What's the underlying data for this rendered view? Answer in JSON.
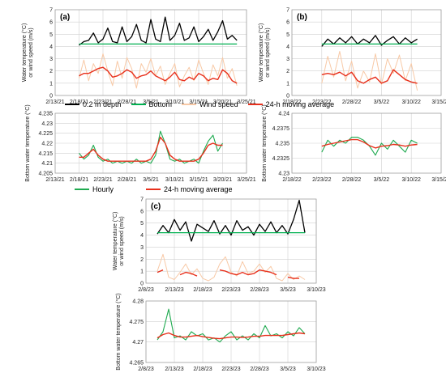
{
  "figure": {
    "legends": {
      "top": [
        "0.2 m depth",
        "Bottom",
        "Wind speed",
        "24-h moving average"
      ],
      "bottom": [
        "Hourly",
        "24-h moving average"
      ]
    }
  },
  "colors": {
    "surface": "#000000",
    "bottom": "#00b050",
    "wind": "#f8c9a6",
    "moving_average": "#e8301c",
    "hourly": "#1faa50",
    "grid": "#d0d0d0"
  },
  "chart_data": [
    {
      "id": "a-top",
      "panel_label": "(a)",
      "type": "line",
      "ylabel_lines": [
        "Water temperature (°C)",
        "or wind speed (m/s)"
      ],
      "x_ticks": [
        "2/13/21",
        "2/18/21",
        "2/23/21",
        "2/28/21",
        "3/5/21",
        "3/10/21",
        "3/15/21",
        "3/20/21",
        "3/25/21"
      ],
      "y_ticks": [
        "0",
        "1",
        "2",
        "3",
        "4",
        "5",
        "6",
        "7"
      ],
      "xlim": [
        0,
        40
      ],
      "ylim": [
        0,
        7
      ],
      "grid": true,
      "series": [
        {
          "name": "0.2 m depth",
          "role": "surface",
          "x": [
            5,
            6,
            7,
            8,
            9,
            10,
            11,
            12,
            13,
            14,
            15,
            16,
            17,
            18,
            19,
            20,
            21,
            22,
            23,
            24,
            25,
            26,
            27,
            28,
            29,
            30,
            31,
            32,
            33,
            34,
            35,
            36,
            37,
            38
          ],
          "y": [
            4.1,
            4.4,
            4.5,
            5.1,
            4.3,
            4.6,
            5.5,
            4.4,
            4.3,
            5.6,
            4.4,
            4.8,
            5.8,
            4.5,
            4.3,
            6.2,
            4.6,
            4.4,
            6.4,
            4.5,
            4.9,
            5.9,
            4.5,
            4.7,
            5.6,
            4.4,
            4.8,
            5.4,
            4.5,
            5.2,
            6.1,
            4.6,
            4.9,
            4.5
          ]
        },
        {
          "name": "Bottom",
          "role": "bottom",
          "x": [
            5,
            38
          ],
          "y": [
            4.2,
            4.2
          ]
        },
        {
          "name": "Wind speed",
          "role": "wind",
          "x": [
            5,
            6,
            7,
            8,
            9,
            10,
            11,
            12,
            13,
            14,
            15,
            16,
            17,
            18,
            19,
            20,
            21,
            22,
            23,
            24,
            25,
            26,
            27,
            28,
            29,
            30,
            31,
            32,
            33,
            34,
            35,
            36,
            37,
            38
          ],
          "y": [
            1.4,
            2.9,
            1.2,
            2.6,
            1.8,
            3.4,
            2.0,
            0.8,
            2.8,
            1.4,
            3.1,
            2.2,
            0.6,
            2.6,
            1.9,
            3.0,
            1.6,
            2.4,
            0.9,
            1.8,
            2.6,
            0.7,
            1.6,
            2.3,
            1.2,
            2.9,
            1.8,
            0.9,
            2.5,
            1.6,
            3.1,
            1.4,
            2.2,
            0.8
          ]
        },
        {
          "name": "24-h moving average",
          "role": "moving_average",
          "x": [
            5,
            6,
            7,
            8,
            9,
            10,
            11,
            12,
            13,
            14,
            15,
            16,
            17,
            18,
            19,
            20,
            21,
            22,
            23,
            24,
            25,
            26,
            27,
            28,
            29,
            30,
            31,
            32,
            33,
            34,
            35,
            36,
            37,
            38
          ],
          "y": [
            1.6,
            1.8,
            1.8,
            2.0,
            2.2,
            2.3,
            2.0,
            1.5,
            1.6,
            1.8,
            2.1,
            1.9,
            1.4,
            1.6,
            1.7,
            2.0,
            1.6,
            1.4,
            1.2,
            1.5,
            1.9,
            1.3,
            1.2,
            1.5,
            1.3,
            1.8,
            1.6,
            1.2,
            1.4,
            1.3,
            2.1,
            1.8,
            1.2,
            1.0
          ]
        }
      ]
    },
    {
      "id": "a-bottom",
      "type": "line",
      "ylabel_lines": [
        "Bottom water temperature (°C)"
      ],
      "x_ticks": [
        "2/13/21",
        "2/18/21",
        "2/23/21",
        "2/28/21",
        "3/5/21",
        "3/10/21",
        "3/15/21",
        "3/20/21",
        "3/25/21"
      ],
      "y_ticks": [
        "4.205",
        "4.21",
        "4.215",
        "4.22",
        "4.225",
        "4.23",
        "4.235"
      ],
      "xlim": [
        0,
        40
      ],
      "ylim": [
        4.205,
        4.235
      ],
      "grid": true,
      "series": [
        {
          "name": "Hourly",
          "role": "hourly",
          "x": [
            5,
            6,
            7,
            8,
            9,
            10,
            11,
            12,
            13,
            14,
            15,
            16,
            17,
            18,
            19,
            20,
            21,
            22,
            23,
            24,
            25,
            26,
            27,
            28,
            29,
            30,
            31,
            32,
            33,
            34,
            35
          ],
          "y": [
            4.215,
            4.212,
            4.214,
            4.219,
            4.213,
            4.211,
            4.212,
            4.21,
            4.211,
            4.21,
            4.211,
            4.21,
            4.212,
            4.21,
            4.211,
            4.21,
            4.214,
            4.226,
            4.22,
            4.212,
            4.211,
            4.212,
            4.21,
            4.211,
            4.212,
            4.21,
            4.216,
            4.221,
            4.224,
            4.216,
            4.22
          ]
        },
        {
          "name": "24-h moving average",
          "role": "moving_average",
          "x": [
            5,
            6,
            7,
            8,
            9,
            10,
            11,
            12,
            13,
            14,
            15,
            16,
            17,
            18,
            19,
            20,
            21,
            22,
            23,
            24,
            25,
            26,
            27,
            28,
            29,
            30,
            31,
            32,
            33,
            34,
            35
          ],
          "y": [
            4.213,
            4.213,
            4.215,
            4.217,
            4.214,
            4.212,
            4.211,
            4.211,
            4.211,
            4.211,
            4.211,
            4.211,
            4.211,
            4.211,
            4.211,
            4.212,
            4.216,
            4.223,
            4.22,
            4.214,
            4.212,
            4.211,
            4.211,
            4.211,
            4.211,
            4.212,
            4.215,
            4.219,
            4.22,
            4.219,
            4.219
          ]
        }
      ]
    },
    {
      "id": "b-top",
      "panel_label": "(b)",
      "type": "line",
      "ylabel_lines": [
        "Water temperature (°C)",
        "or wind speed (m/s)"
      ],
      "x_ticks": [
        "2/18/22",
        "2/23/22",
        "2/28/22",
        "3/5/22",
        "3/10/22",
        "3/15/22"
      ],
      "y_ticks": [
        "0",
        "1",
        "2",
        "3",
        "4",
        "5",
        "6",
        "7"
      ],
      "xlim": [
        0,
        25
      ],
      "ylim": [
        0,
        7
      ],
      "grid": true,
      "series": [
        {
          "name": "0.2 m depth",
          "role": "surface",
          "x": [
            5,
            6,
            7,
            8,
            9,
            10,
            11,
            12,
            13,
            14,
            15,
            16,
            17,
            18,
            19,
            20,
            21
          ],
          "y": [
            4.0,
            4.6,
            4.2,
            4.7,
            4.3,
            4.8,
            4.2,
            4.6,
            4.3,
            4.9,
            4.1,
            4.5,
            4.8,
            4.2,
            4.7,
            4.3,
            4.6
          ]
        },
        {
          "name": "Bottom",
          "role": "bottom",
          "x": [
            5,
            21
          ],
          "y": [
            4.2,
            4.2
          ]
        },
        {
          "name": "Wind speed",
          "role": "wind",
          "x": [
            5,
            6,
            7,
            8,
            9,
            10,
            11,
            12,
            13,
            14,
            15,
            16,
            17,
            18,
            19,
            20,
            21
          ],
          "y": [
            1.0,
            3.2,
            1.5,
            3.6,
            1.2,
            2.8,
            0.6,
            2.0,
            1.1,
            3.4,
            0.9,
            3.0,
            1.8,
            3.3,
            1.2,
            2.6,
            0.4
          ]
        },
        {
          "name": "24-h moving average",
          "role": "moving_average",
          "x": [
            5,
            6,
            7,
            8,
            9,
            10,
            11,
            12,
            13,
            14,
            15,
            16,
            17,
            18,
            19,
            20,
            21
          ],
          "y": [
            1.7,
            1.8,
            1.7,
            1.9,
            1.6,
            1.9,
            1.2,
            1.0,
            1.3,
            1.5,
            1.0,
            1.2,
            2.1,
            1.7,
            1.3,
            1.1,
            1.0
          ]
        }
      ]
    },
    {
      "id": "b-bottom",
      "type": "line",
      "ylabel_lines": [
        "Bottom water temperature (°C)"
      ],
      "x_ticks": [
        "2/18/22",
        "2/23/22",
        "2/28/22",
        "3/5/22",
        "3/10/22",
        "3/15/22"
      ],
      "y_ticks": [
        "4.23",
        "4.2325",
        "4.235",
        "4.2375",
        "4.24"
      ],
      "xlim": [
        0,
        25
      ],
      "ylim": [
        4.23,
        4.24
      ],
      "grid": true,
      "series": [
        {
          "name": "Hourly",
          "role": "hourly",
          "x": [
            5,
            6,
            7,
            8,
            9,
            10,
            11,
            12,
            13,
            14,
            15,
            16,
            17,
            18,
            19,
            20,
            21
          ],
          "y": [
            4.2335,
            4.2355,
            4.2345,
            4.2355,
            4.235,
            4.236,
            4.236,
            4.2355,
            4.2345,
            4.233,
            4.235,
            4.234,
            4.2355,
            4.2345,
            4.2335,
            4.2355,
            4.235
          ]
        },
        {
          "name": "24-h moving average",
          "role": "moving_average",
          "x": [
            5,
            6,
            7,
            8,
            9,
            10,
            11,
            12,
            13,
            14,
            15,
            16,
            17,
            18,
            19,
            20,
            21
          ],
          "y": [
            4.2345,
            4.2348,
            4.235,
            4.2352,
            4.2354,
            4.2356,
            4.2356,
            4.2352,
            4.2346,
            4.2342,
            4.2345,
            4.2346,
            4.2348,
            4.2347,
            4.2345,
            4.2347,
            4.2348
          ]
        }
      ]
    },
    {
      "id": "c-top",
      "panel_label": "(c)",
      "type": "line",
      "ylabel_lines": [
        "Water temperature (°C)",
        "or wind speed (m/s)"
      ],
      "x_ticks": [
        "2/8/23",
        "2/13/23",
        "2/18/23",
        "2/23/23",
        "2/28/23",
        "3/5/23",
        "3/10/23"
      ],
      "y_ticks": [
        "0",
        "1",
        "2",
        "3",
        "4",
        "5",
        "6",
        "7"
      ],
      "xlim": [
        0,
        30
      ],
      "ylim": [
        0,
        7
      ],
      "grid": true,
      "series": [
        {
          "name": "0.2 m depth",
          "role": "surface",
          "x": [
            2,
            3,
            4,
            5,
            6,
            7,
            8,
            9,
            10,
            11,
            12,
            13,
            14,
            15,
            16,
            17,
            18,
            19,
            20,
            21,
            22,
            23,
            24,
            25,
            26,
            27,
            28
          ],
          "y": [
            4.1,
            4.8,
            4.2,
            5.3,
            4.4,
            5.1,
            3.5,
            4.9,
            4.6,
            4.3,
            5.2,
            4.1,
            4.8,
            4.0,
            5.2,
            4.4,
            4.7,
            4.0,
            4.9,
            4.3,
            5.1,
            4.2,
            4.8,
            4.1,
            5.3,
            6.9,
            4.2
          ]
        },
        {
          "name": "Bottom",
          "role": "bottom",
          "x": [
            2,
            28
          ],
          "y": [
            4.2,
            4.2
          ]
        },
        {
          "name": "Wind speed",
          "role": "wind",
          "x": [
            2,
            3,
            4,
            5,
            6,
            7,
            8,
            9,
            10,
            11,
            12,
            13,
            14,
            15,
            16,
            17,
            18,
            19,
            20,
            21,
            22,
            23,
            24,
            25,
            26,
            27,
            28
          ],
          "y": [
            1.0,
            2.4,
            0.5,
            0.3,
            0.9,
            1.6,
            0.7,
            1.2,
            0.4,
            0.2,
            0.5,
            1.6,
            2.2,
            0.9,
            0.6,
            1.8,
            0.8,
            1.0,
            1.6,
            0.9,
            1.4,
            0.4,
            0.2,
            0.8,
            0.3,
            0.6,
            0.3
          ]
        },
        {
          "name": "24-h moving average",
          "role": "moving_average",
          "x": [
            2,
            3,
            4,
            5,
            6,
            7,
            8,
            9,
            10,
            11,
            12,
            13,
            14,
            15,
            16,
            17,
            18,
            19,
            20,
            21,
            22,
            23,
            24,
            25,
            26,
            27,
            28
          ],
          "y": [
            0.9,
            1.1,
            null,
            null,
            0.7,
            0.9,
            0.8,
            0.6,
            null,
            null,
            null,
            1.1,
            1.0,
            0.8,
            0.7,
            0.9,
            0.7,
            0.8,
            1.1,
            1.0,
            0.9,
            0.7,
            null,
            0.5,
            0.4,
            0.4,
            null
          ]
        }
      ]
    },
    {
      "id": "c-bottom",
      "type": "line",
      "ylabel_lines": [
        "Bottom water temperature (°C)"
      ],
      "x_ticks": [
        "2/8/23",
        "2/13/23",
        "2/18/23",
        "2/23/23",
        "2/28/23",
        "3/5/23",
        "3/10/23"
      ],
      "y_ticks": [
        "4.265",
        "4.27",
        "4.275",
        "4.28"
      ],
      "xlim": [
        0,
        30
      ],
      "ylim": [
        4.265,
        4.28
      ],
      "grid": true,
      "series": [
        {
          "name": "Hourly",
          "role": "hourly",
          "x": [
            2,
            3,
            4,
            5,
            6,
            7,
            8,
            9,
            10,
            11,
            12,
            13,
            14,
            15,
            16,
            17,
            18,
            19,
            20,
            21,
            22,
            23,
            24,
            25,
            26,
            27,
            28
          ],
          "y": [
            4.2705,
            4.2725,
            4.278,
            4.271,
            4.2715,
            4.2705,
            4.2725,
            4.2715,
            4.272,
            4.2705,
            4.271,
            4.27,
            4.2715,
            4.2725,
            4.2705,
            4.2715,
            4.2705,
            4.272,
            4.271,
            4.274,
            4.2715,
            4.272,
            4.271,
            4.2725,
            4.2715,
            4.2735,
            4.272
          ]
        },
        {
          "name": "24-h moving average",
          "role": "moving_average",
          "x": [
            2,
            3,
            4,
            5,
            6,
            7,
            8,
            9,
            10,
            11,
            12,
            13,
            14,
            15,
            16,
            17,
            18,
            19,
            20,
            21,
            22,
            23,
            24,
            25,
            26,
            27,
            28
          ],
          "y": [
            4.271,
            4.2718,
            4.2722,
            4.2716,
            4.2712,
            4.2712,
            4.2714,
            4.2716,
            4.2713,
            4.2711,
            4.2709,
            4.2708,
            4.271,
            4.2712,
            4.2712,
            4.2711,
            4.2712,
            4.2714,
            4.2714,
            4.2716,
            4.2716,
            4.2716,
            4.2716,
            4.2718,
            4.272,
            4.2722,
            4.272
          ]
        }
      ]
    }
  ]
}
